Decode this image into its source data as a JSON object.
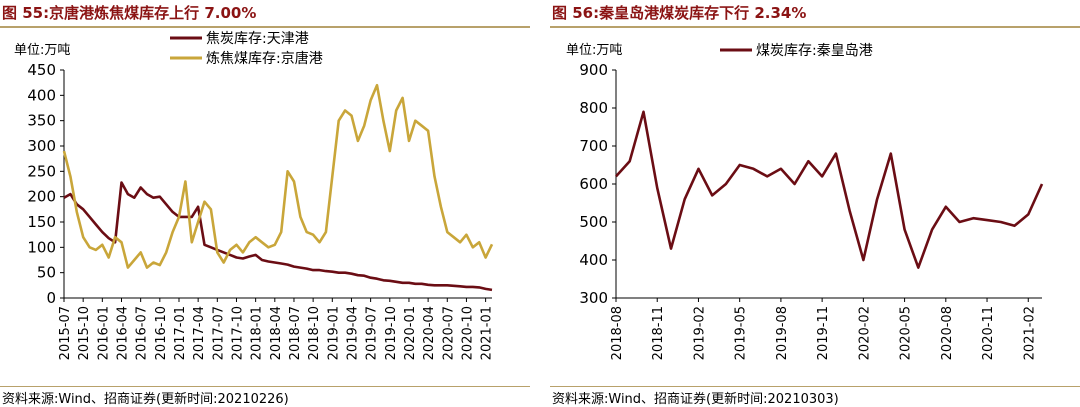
{
  "charts": [
    {
      "title": "图 55:京唐港炼焦煤库存上行 7.00%",
      "source": "资料来源:Wind、招商证券(更新时间:20210226)",
      "chart_data": {
        "type": "line",
        "unit_label": "单位:万吨",
        "ylim": [
          0,
          450
        ],
        "yticks": [
          0,
          50,
          100,
          150,
          200,
          250,
          300,
          350,
          400,
          450
        ],
        "xticks": [
          "2015-07",
          "2015-10",
          "2016-01",
          "2016-04",
          "2016-07",
          "2016-10",
          "2017-01",
          "2017-04",
          "2017-07",
          "2017-10",
          "2018-01",
          "2018-04",
          "2018-07",
          "2018-10",
          "2019-01",
          "2019-04",
          "2019-07",
          "2019-10",
          "2020-01",
          "2020-04",
          "2020-07",
          "2020-10",
          "2021-01"
        ],
        "x_end": "2021-02",
        "grid": false,
        "legend_position": "top",
        "series": [
          {
            "name": "焦炭库存:天津港",
            "color": "#6b0d14",
            "points": [
              [
                "2015-07",
                198
              ],
              [
                "2015-08",
                205
              ],
              [
                "2015-09",
                185
              ],
              [
                "2015-10",
                175
              ],
              [
                "2015-11",
                160
              ],
              [
                "2015-12",
                145
              ],
              [
                "2016-01",
                130
              ],
              [
                "2016-02",
                118
              ],
              [
                "2016-03",
                110
              ],
              [
                "2016-04",
                228
              ],
              [
                "2016-05",
                205
              ],
              [
                "2016-06",
                198
              ],
              [
                "2016-07",
                218
              ],
              [
                "2016-08",
                205
              ],
              [
                "2016-09",
                198
              ],
              [
                "2016-10",
                200
              ],
              [
                "2016-11",
                185
              ],
              [
                "2016-12",
                170
              ],
              [
                "2017-01",
                160
              ],
              [
                "2017-02",
                160
              ],
              [
                "2017-03",
                160
              ],
              [
                "2017-04",
                180
              ],
              [
                "2017-05",
                105
              ],
              [
                "2017-06",
                100
              ],
              [
                "2017-07",
                95
              ],
              [
                "2017-08",
                90
              ],
              [
                "2017-09",
                85
              ],
              [
                "2017-10",
                80
              ],
              [
                "2017-11",
                78
              ],
              [
                "2017-12",
                82
              ],
              [
                "2018-01",
                85
              ],
              [
                "2018-02",
                75
              ],
              [
                "2018-03",
                72
              ],
              [
                "2018-04",
                70
              ],
              [
                "2018-05",
                68
              ],
              [
                "2018-06",
                66
              ],
              [
                "2018-07",
                62
              ],
              [
                "2018-08",
                60
              ],
              [
                "2018-09",
                58
              ],
              [
                "2018-10",
                55
              ],
              [
                "2018-11",
                55
              ],
              [
                "2018-12",
                53
              ],
              [
                "2019-01",
                52
              ],
              [
                "2019-02",
                50
              ],
              [
                "2019-03",
                50
              ],
              [
                "2019-04",
                48
              ],
              [
                "2019-05",
                45
              ],
              [
                "2019-06",
                44
              ],
              [
                "2019-07",
                40
              ],
              [
                "2019-08",
                38
              ],
              [
                "2019-09",
                35
              ],
              [
                "2019-10",
                34
              ],
              [
                "2019-11",
                32
              ],
              [
                "2019-12",
                30
              ],
              [
                "2020-01",
                30
              ],
              [
                "2020-02",
                28
              ],
              [
                "2020-03",
                28
              ],
              [
                "2020-04",
                26
              ],
              [
                "2020-05",
                25
              ],
              [
                "2020-06",
                25
              ],
              [
                "2020-07",
                25
              ],
              [
                "2020-08",
                24
              ],
              [
                "2020-09",
                23
              ],
              [
                "2020-10",
                22
              ],
              [
                "2020-11",
                22
              ],
              [
                "2020-12",
                21
              ],
              [
                "2021-01",
                18
              ],
              [
                "2021-02",
                16
              ]
            ]
          },
          {
            "name": "炼焦煤库存:京唐港",
            "color": "#c9a63a",
            "points": [
              [
                "2015-07",
                290
              ],
              [
                "2015-08",
                240
              ],
              [
                "2015-09",
                170
              ],
              [
                "2015-10",
                120
              ],
              [
                "2015-11",
                100
              ],
              [
                "2015-12",
                95
              ],
              [
                "2016-01",
                105
              ],
              [
                "2016-02",
                80
              ],
              [
                "2016-03",
                120
              ],
              [
                "2016-04",
                110
              ],
              [
                "2016-05",
                60
              ],
              [
                "2016-06",
                75
              ],
              [
                "2016-07",
                90
              ],
              [
                "2016-08",
                60
              ],
              [
                "2016-09",
                70
              ],
              [
                "2016-10",
                65
              ],
              [
                "2016-11",
                90
              ],
              [
                "2016-12",
                130
              ],
              [
                "2017-01",
                160
              ],
              [
                "2017-02",
                230
              ],
              [
                "2017-03",
                110
              ],
              [
                "2017-04",
                150
              ],
              [
                "2017-05",
                190
              ],
              [
                "2017-06",
                175
              ],
              [
                "2017-07",
                90
              ],
              [
                "2017-08",
                70
              ],
              [
                "2017-09",
                95
              ],
              [
                "2017-10",
                105
              ],
              [
                "2017-11",
                90
              ],
              [
                "2017-12",
                110
              ],
              [
                "2018-01",
                120
              ],
              [
                "2018-02",
                110
              ],
              [
                "2018-03",
                100
              ],
              [
                "2018-04",
                105
              ],
              [
                "2018-05",
                130
              ],
              [
                "2018-06",
                250
              ],
              [
                "2018-07",
                230
              ],
              [
                "2018-08",
                160
              ],
              [
                "2018-09",
                130
              ],
              [
                "2018-10",
                125
              ],
              [
                "2018-11",
                110
              ],
              [
                "2018-12",
                130
              ],
              [
                "2019-01",
                240
              ],
              [
                "2019-02",
                350
              ],
              [
                "2019-03",
                370
              ],
              [
                "2019-04",
                360
              ],
              [
                "2019-05",
                310
              ],
              [
                "2019-06",
                340
              ],
              [
                "2019-07",
                390
              ],
              [
                "2019-08",
                420
              ],
              [
                "2019-09",
                350
              ],
              [
                "2019-10",
                290
              ],
              [
                "2019-11",
                370
              ],
              [
                "2019-12",
                395
              ],
              [
                "2020-01",
                310
              ],
              [
                "2020-02",
                350
              ],
              [
                "2020-03",
                340
              ],
              [
                "2020-04",
                330
              ],
              [
                "2020-05",
                240
              ],
              [
                "2020-06",
                180
              ],
              [
                "2020-07",
                130
              ],
              [
                "2020-08",
                120
              ],
              [
                "2020-09",
                110
              ],
              [
                "2020-10",
                125
              ],
              [
                "2020-11",
                100
              ],
              [
                "2020-12",
                110
              ],
              [
                "2021-01",
                80
              ],
              [
                "2021-02",
                106
              ]
            ]
          }
        ]
      }
    },
    {
      "title": "图 56:秦皇岛港煤炭库存下行 2.34%",
      "source": "资料来源:Wind、招商证券(更新时间:20210303)",
      "chart_data": {
        "type": "line",
        "unit_label": "单位:万吨",
        "ylim": [
          300,
          900
        ],
        "yticks": [
          300,
          400,
          500,
          600,
          700,
          800,
          900
        ],
        "xticks": [
          "2018-08",
          "2018-11",
          "2019-02",
          "2019-05",
          "2019-08",
          "2019-11",
          "2020-02",
          "2020-05",
          "2020-08",
          "2020-11",
          "2021-02"
        ],
        "x_end": "2021-03",
        "grid": false,
        "legend_position": "top",
        "series": [
          {
            "name": "煤炭库存:秦皇岛港",
            "color": "#6b0d14",
            "points": [
              [
                "2018-08",
                620
              ],
              [
                "2018-09",
                660
              ],
              [
                "2018-10",
                790
              ],
              [
                "2018-11",
                590
              ],
              [
                "2018-12",
                430
              ],
              [
                "2019-01",
                560
              ],
              [
                "2019-02",
                640
              ],
              [
                "2019-03",
                570
              ],
              [
                "2019-04",
                600
              ],
              [
                "2019-05",
                650
              ],
              [
                "2019-06",
                640
              ],
              [
                "2019-07",
                620
              ],
              [
                "2019-08",
                640
              ],
              [
                "2019-09",
                600
              ],
              [
                "2019-10",
                660
              ],
              [
                "2019-11",
                620
              ],
              [
                "2019-12",
                680
              ],
              [
                "2020-01",
                530
              ],
              [
                "2020-02",
                400
              ],
              [
                "2020-03",
                560
              ],
              [
                "2020-04",
                680
              ],
              [
                "2020-05",
                480
              ],
              [
                "2020-06",
                380
              ],
              [
                "2020-07",
                480
              ],
              [
                "2020-08",
                540
              ],
              [
                "2020-09",
                500
              ],
              [
                "2020-10",
                510
              ],
              [
                "2020-11",
                505
              ],
              [
                "2020-12",
                500
              ],
              [
                "2021-01",
                490
              ],
              [
                "2021-02",
                520
              ],
              [
                "2021-03",
                600
              ]
            ]
          }
        ]
      }
    }
  ]
}
